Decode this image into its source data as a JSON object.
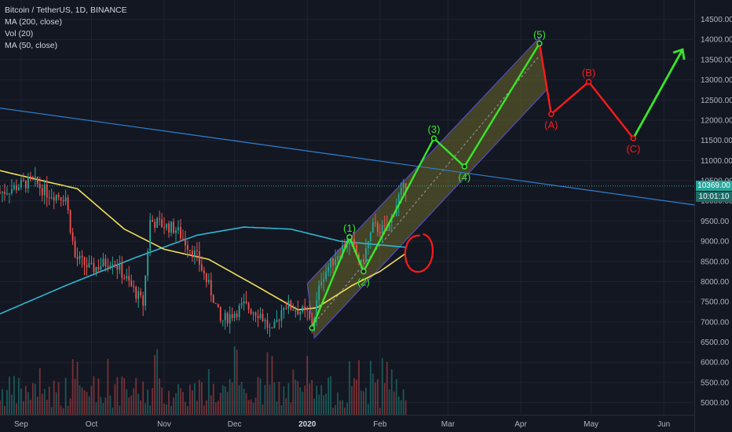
{
  "legend": {
    "symbol": "Bitcoin / TetherUS, 1D, BINANCE",
    "ma200": "MA (200, close)",
    "vol": "Vol (20)",
    "ma50": "MA (50, close)"
  },
  "price_labels": {
    "last_price": "10369.00",
    "countdown": "10:01:10"
  },
  "colors": {
    "background": "#131722",
    "up": "#26a69a",
    "down": "#ef5350",
    "ma200": "#2fb6d3",
    "ma50": "#f2e05a",
    "trendline": "#2f80d1",
    "impulse": "#39e62a",
    "correction": "#ff1a1a",
    "channel": "#6b6a2b"
  },
  "chart_data": {
    "type": "candlestick",
    "y_axis": {
      "ticks": [
        5000,
        5500,
        6000,
        6500,
        7000,
        7500,
        8000,
        8500,
        9000,
        9500,
        10000,
        10500,
        11000,
        11500,
        12000,
        12500,
        13000,
        13500,
        14000,
        14500
      ],
      "tick_labels": [
        "5000.00",
        "5500.00",
        "6000.00",
        "6500.00",
        "7000.00",
        "7500.00",
        "8000.00",
        "8500.00",
        "9000.00",
        "9500.00",
        "10000.00",
        "10500.00",
        "11000.00",
        "11500.00",
        "12000.00",
        "12500.00",
        "13000.00",
        "13500.00",
        "14000.00",
        "14500.00"
      ],
      "range": [
        4700,
        14900
      ]
    },
    "x_axis": {
      "tick_labels": [
        "Sep",
        "Oct",
        "Nov",
        "Dec",
        "2020",
        "Feb",
        "Mar",
        "Apr",
        "May",
        "Jun"
      ],
      "tick_dates": [
        "2019-09-01",
        "2019-10-01",
        "2019-11-01",
        "2019-12-01",
        "2020-01-01",
        "2020-02-01",
        "2020-03-01",
        "2020-04-01",
        "2020-05-01",
        "2020-06-01"
      ],
      "range": [
        "2019-08-23",
        "2020-06-14"
      ]
    },
    "price_path": [
      [
        "2019-08-23",
        10200
      ],
      [
        "2019-09-01",
        10400
      ],
      [
        "2019-09-06",
        10500
      ],
      [
        "2019-09-12",
        10200
      ],
      [
        "2019-09-20",
        10100
      ],
      [
        "2019-09-24",
        8600
      ],
      [
        "2019-10-01",
        8300
      ],
      [
        "2019-10-10",
        8550
      ],
      [
        "2019-10-23",
        7450
      ],
      [
        "2019-10-26",
        9500
      ],
      [
        "2019-11-06",
        9300
      ],
      [
        "2019-11-15",
        8600
      ],
      [
        "2019-11-22",
        7600
      ],
      [
        "2019-11-25",
        7000
      ],
      [
        "2019-12-05",
        7400
      ],
      [
        "2019-12-12",
        7200
      ],
      [
        "2019-12-17",
        6700
      ],
      [
        "2019-12-22",
        7450
      ],
      [
        "2020-01-01",
        7200
      ],
      [
        "2020-01-03",
        6850
      ],
      [
        "2020-01-07",
        8100
      ],
      [
        "2020-01-14",
        8700
      ],
      [
        "2020-01-19",
        9050
      ],
      [
        "2020-01-24",
        8400
      ],
      [
        "2020-01-29",
        9350
      ],
      [
        "2020-02-04",
        9250
      ],
      [
        "2020-02-09",
        10100
      ],
      [
        "2020-02-12",
        10369
      ]
    ],
    "ma200_path": [
      [
        "2019-08-23",
        7200
      ],
      [
        "2019-09-20",
        7900
      ],
      [
        "2019-10-20",
        8600
      ],
      [
        "2019-11-15",
        9150
      ],
      [
        "2019-12-05",
        9350
      ],
      [
        "2019-12-25",
        9300
      ],
      [
        "2020-01-15",
        9000
      ],
      [
        "2020-02-12",
        8850
      ]
    ],
    "ma50_path": [
      [
        "2019-08-23",
        10750
      ],
      [
        "2019-09-10",
        10500
      ],
      [
        "2019-09-25",
        10300
      ],
      [
        "2019-10-15",
        9300
      ],
      [
        "2019-11-01",
        8800
      ],
      [
        "2019-11-20",
        8550
      ],
      [
        "2019-12-10",
        7900
      ],
      [
        "2019-12-28",
        7300
      ],
      [
        "2020-01-05",
        7350
      ],
      [
        "2020-01-20",
        7900
      ],
      [
        "2020-02-01",
        8250
      ],
      [
        "2020-02-12",
        8700
      ]
    ],
    "trendline": [
      [
        "2019-08-23",
        12300
      ],
      [
        "2020-06-14",
        9900
      ]
    ],
    "waves_impulse": [
      {
        "label": "",
        "date": "2020-01-03",
        "price": 6850
      },
      {
        "label": "(1)",
        "date": "2020-01-19",
        "price": 9100
      },
      {
        "label": "(2)",
        "date": "2020-01-25",
        "price": 8250
      },
      {
        "label": "(3)",
        "date": "2020-02-24",
        "price": 11550
      },
      {
        "label": "(4)",
        "date": "2020-03-08",
        "price": 10850
      },
      {
        "label": "(5)",
        "date": "2020-04-09",
        "price": 13900
      }
    ],
    "waves_correction": [
      {
        "label": "(5)",
        "date": "2020-04-09",
        "price": 13900
      },
      {
        "label": "(A)",
        "date": "2020-04-14",
        "price": 12150
      },
      {
        "label": "(B)",
        "date": "2020-04-30",
        "price": 12950
      },
      {
        "label": "(C)",
        "date": "2020-05-19",
        "price": 11550
      }
    ],
    "final_arrow": [
      [
        "2020-05-19",
        11550
      ],
      [
        "2020-06-09",
        13750
      ]
    ],
    "channel": [
      [
        "2020-01-01",
        7950
      ],
      [
        "2020-04-09",
        14050
      ],
      [
        "2020-04-12",
        12750
      ],
      [
        "2020-01-04",
        6600
      ]
    ],
    "channel_midline": [
      [
        "2020-01-03",
        6900
      ],
      [
        "2020-04-09",
        13600
      ]
    ],
    "circle_mark": {
      "date": "2020-02-14",
      "price": 8750
    }
  }
}
